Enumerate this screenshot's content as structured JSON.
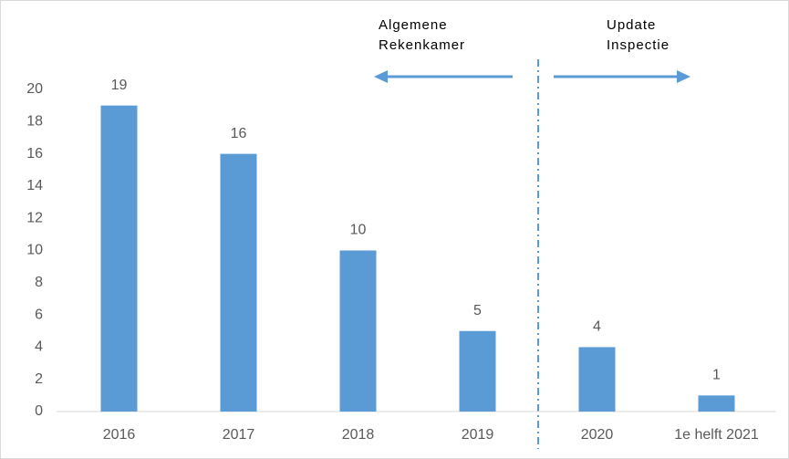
{
  "chart_data": {
    "type": "bar",
    "categories": [
      "2016",
      "2017",
      "2018",
      "2019",
      "2020",
      "1e helft 2021"
    ],
    "values": [
      19,
      16,
      10,
      5,
      4,
      1
    ],
    "color": "#5b9bd5",
    "ylim": [
      0,
      20
    ],
    "yticks": [
      0,
      2,
      4,
      6,
      8,
      10,
      12,
      14,
      16,
      18,
      20
    ],
    "grid": false,
    "annotations": [
      [
        "Algemene",
        "Rekenkamer"
      ],
      [
        "Update",
        "Inspectie"
      ]
    ]
  }
}
